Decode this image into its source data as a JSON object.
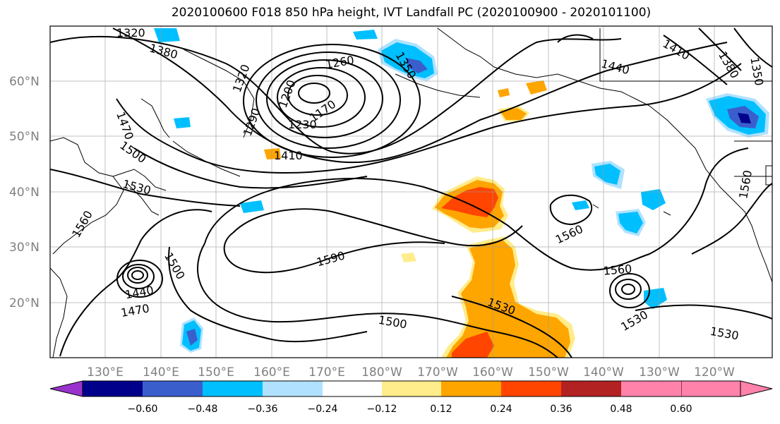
{
  "title": "2020100600 F018 850 hPa height, IVT Landfall PC (2020100900 - 2020101100)",
  "lat_labels": [
    "60°N",
    "50°N",
    "40°N",
    "30°N",
    "20°N"
  ],
  "lon_labels": [
    "130°E",
    "140°E",
    "150°E",
    "160°E",
    "170°E",
    "180°W",
    "170°W",
    "160°W",
    "150°W",
    "140°W",
    "130°W",
    "120°W"
  ],
  "contour_labels": [
    "1320",
    "1380",
    "1260",
    "1350",
    "1320",
    "1200",
    "1470",
    "1170",
    "1290",
    "1230",
    "1440",
    "1410",
    "1380",
    "1350",
    "1500",
    "1410",
    "1530",
    "1560",
    "1560",
    "1560",
    "1590",
    "1500",
    "1560",
    "1440",
    "1470",
    "1530",
    "1530",
    "1500",
    "1530"
  ],
  "colorbar": {
    "tick_labels": [
      "−0.60",
      "−0.48",
      "−0.36",
      "−0.24",
      "−0.12",
      "0.12",
      "0.24",
      "0.36",
      "0.48",
      "0.60"
    ],
    "colors": [
      "#9932cc",
      "#00008b",
      "#3a5fcd",
      "#00bfff",
      "#b0e2ff",
      "#ffffff",
      "#ffec8b",
      "#ffa500",
      "#ff4500",
      "#b22222",
      "#ff82ab"
    ]
  },
  "shading_colors": {
    "light_blue": "#b0e2ff",
    "sky_blue": "#00bfff",
    "mid_blue": "#3a5fcd",
    "navy": "#00008b",
    "purple": "#9932cc",
    "light_yellow": "#ffec8b",
    "orange": "#ffa500",
    "red_orange": "#ff4500"
  }
}
